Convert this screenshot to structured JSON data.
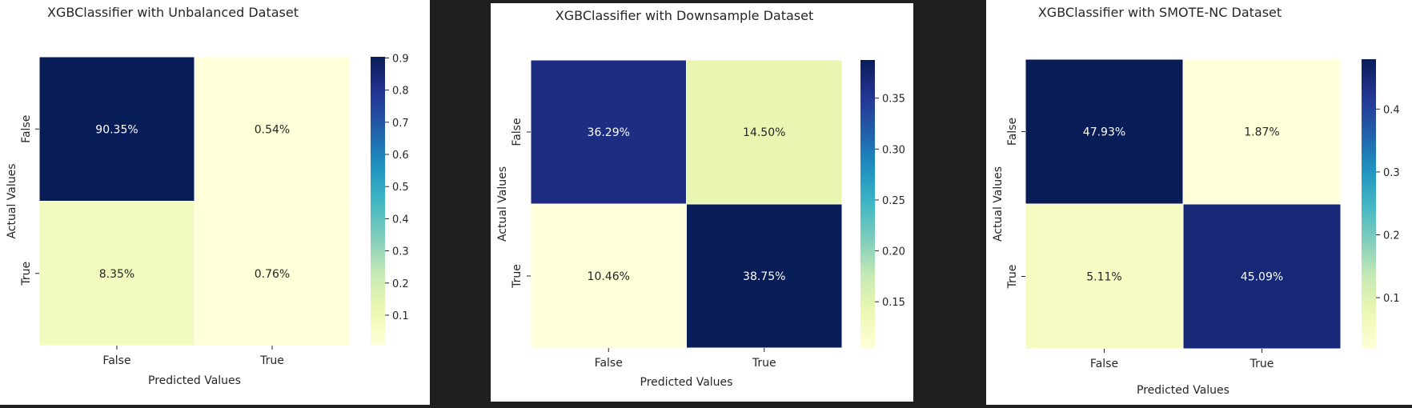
{
  "chart_data": [
    {
      "type": "heatmap",
      "title": "XGBClassifier with Unbalanced Dataset",
      "xlabel": "Predicted Values",
      "ylabel": "Actual Values",
      "x_categories": [
        "False",
        "True"
      ],
      "y_categories": [
        "False",
        "True"
      ],
      "values": [
        [
          0.9035,
          0.0054
        ],
        [
          0.0835,
          0.0076
        ]
      ],
      "annotations": [
        [
          "90.35%",
          "0.54%"
        ],
        [
          "8.35%",
          "0.76%"
        ]
      ],
      "colormap": "YlGnBu",
      "colorbar": {
        "range": [
          0.0054,
          0.9035
        ],
        "ticks": [
          "0.1",
          "0.2",
          "0.3",
          "0.4",
          "0.5",
          "0.6",
          "0.7",
          "0.8",
          "0.9"
        ]
      }
    },
    {
      "type": "heatmap",
      "title": "XGBClassifier with Downsample Dataset",
      "xlabel": "Predicted Values",
      "ylabel": "Actual Values",
      "x_categories": [
        "False",
        "True"
      ],
      "y_categories": [
        "False",
        "True"
      ],
      "values": [
        [
          0.3629,
          0.145
        ],
        [
          0.1046,
          0.3875
        ]
      ],
      "annotations": [
        [
          "36.29%",
          "14.50%"
        ],
        [
          "10.46%",
          "38.75%"
        ]
      ],
      "colormap": "YlGnBu",
      "colorbar": {
        "range": [
          0.1046,
          0.3875
        ],
        "ticks": [
          "0.15",
          "0.20",
          "0.25",
          "0.30",
          "0.35"
        ]
      }
    },
    {
      "type": "heatmap",
      "title": "XGBClassifier with SMOTE-NC Dataset",
      "xlabel": "Predicted Values",
      "ylabel": "Actual Values",
      "x_categories": [
        "False",
        "True"
      ],
      "y_categories": [
        "False",
        "True"
      ],
      "values": [
        [
          0.4793,
          0.0187
        ],
        [
          0.0511,
          0.4509
        ]
      ],
      "annotations": [
        [
          "47.93%",
          "1.87%"
        ],
        [
          "5.11%",
          "45.09%"
        ]
      ],
      "colormap": "YlGnBu",
      "colorbar": {
        "range": [
          0.0187,
          0.4793
        ],
        "ticks": [
          "0.1",
          "0.2",
          "0.3",
          "0.4"
        ]
      }
    }
  ]
}
